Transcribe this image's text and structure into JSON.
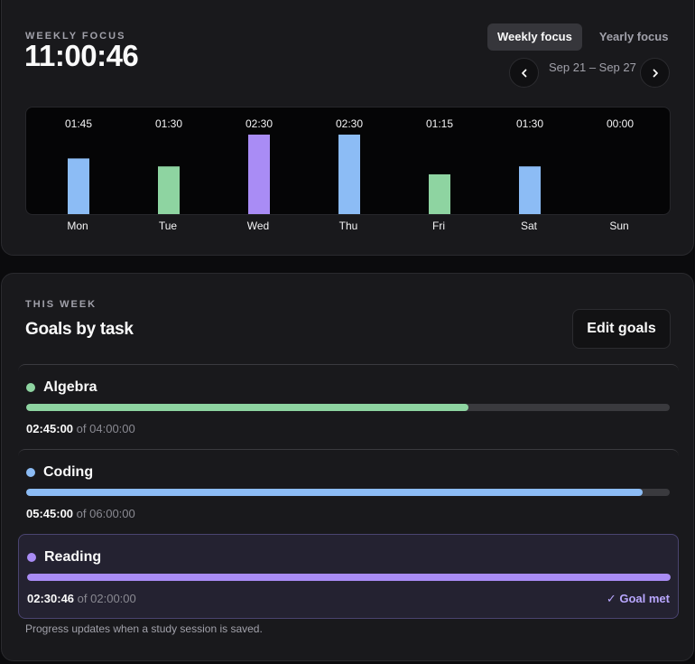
{
  "weekly": {
    "eyebrow": "WEEKLY FOCUS",
    "total": "11:00:46",
    "tabs": [
      {
        "label": "Weekly focus",
        "active": true
      },
      {
        "label": "Yearly focus",
        "active": false
      }
    ],
    "date_range": "Sep 21 – Sep 27",
    "prev_icon": "chevron-left-icon",
    "next_icon": "chevron-right-icon"
  },
  "chart_data": {
    "type": "bar",
    "categories": [
      "Mon",
      "Tue",
      "Wed",
      "Thu",
      "Fri",
      "Sat",
      "Sun"
    ],
    "values": [
      105,
      90,
      150,
      150,
      75,
      90,
      0
    ],
    "labels": [
      "01:45",
      "01:30",
      "02:30",
      "02:30",
      "01:15",
      "01:30",
      "00:00"
    ],
    "colors": [
      "#8cbcf5",
      "#8ed4a1",
      "#a98cf5",
      "#8cbcf5",
      "#8ed4a1",
      "#8cbcf5",
      "#8cbcf5"
    ],
    "ylim": [
      0,
      150
    ],
    "grid": false,
    "unit": "minutes"
  },
  "goals": {
    "eyebrow": "THIS WEEK",
    "title": "Goals by task",
    "edit_label": "Edit goals",
    "of_label": "of",
    "items": [
      {
        "name": "Algebra",
        "done": "02:45:00",
        "target": "04:00:00",
        "progress": 0.6875,
        "color": "#8ed4a1",
        "met": false
      },
      {
        "name": "Coding",
        "done": "05:45:00",
        "target": "06:00:00",
        "progress": 0.9583,
        "color": "#8cbcf5",
        "met": false
      },
      {
        "name": "Reading",
        "done": "02:30:46",
        "target": "02:00:00",
        "progress": 1.0,
        "color": "#a98cf5",
        "met": true,
        "met_label": "✓ Goal met"
      }
    ],
    "footnote": "Progress updates when a study session is saved."
  }
}
